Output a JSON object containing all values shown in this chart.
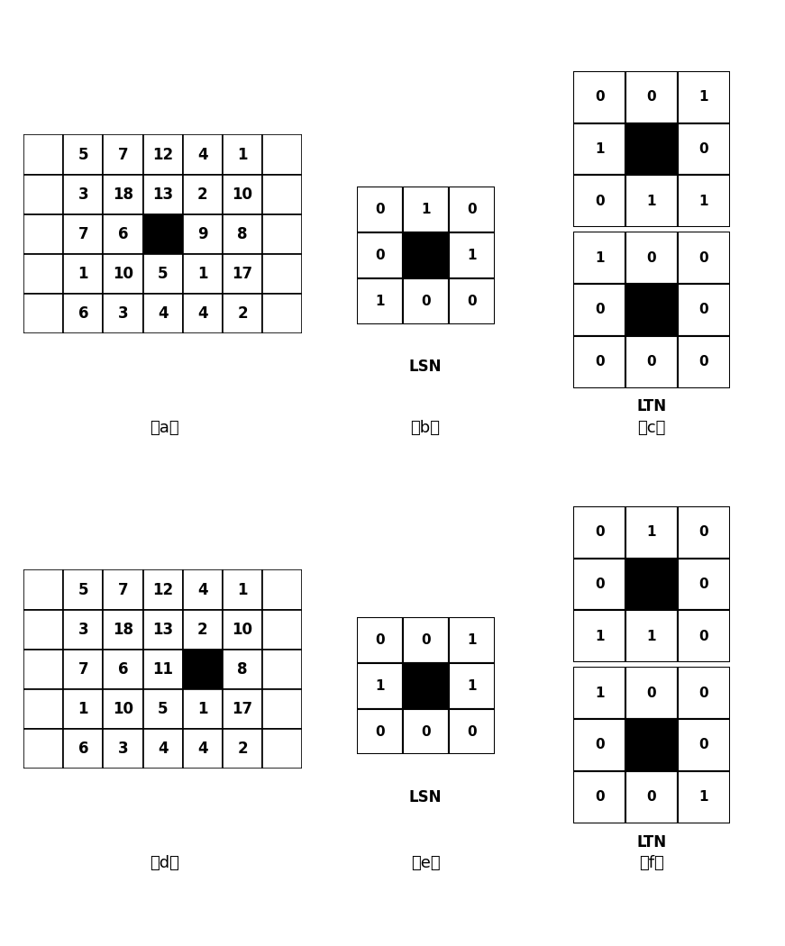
{
  "fig_width": 8.71,
  "fig_height": 10.5,
  "background": "#ffffff",
  "panel_a": {
    "grid": [
      [
        null,
        5,
        7,
        12,
        4,
        1,
        null
      ],
      [
        null,
        3,
        18,
        13,
        2,
        10,
        null
      ],
      [
        null,
        7,
        6,
        "X",
        9,
        8,
        null
      ],
      [
        null,
        1,
        10,
        5,
        1,
        17,
        null
      ],
      [
        null,
        6,
        3,
        4,
        4,
        2,
        null
      ]
    ],
    "black_cell": [
      2,
      3
    ],
    "label": "（a）"
  },
  "panel_b": {
    "grid": [
      [
        0,
        1,
        0
      ],
      [
        0,
        "X",
        1
      ],
      [
        1,
        0,
        0
      ]
    ],
    "black_cell": [
      1,
      1
    ],
    "label": "（b）",
    "sublabel": "LSN"
  },
  "panel_c_top": {
    "grid": [
      [
        0,
        0,
        1
      ],
      [
        1,
        "X",
        0
      ],
      [
        0,
        1,
        1
      ]
    ],
    "black_cell": [
      1,
      1
    ]
  },
  "panel_c_bot": {
    "grid": [
      [
        1,
        0,
        0
      ],
      [
        0,
        "X",
        0
      ],
      [
        0,
        0,
        0
      ]
    ],
    "black_cell": [
      1,
      1
    ],
    "label": "（c）",
    "sublabel": "LTN"
  },
  "panel_d": {
    "grid": [
      [
        null,
        5,
        7,
        12,
        4,
        1,
        null
      ],
      [
        null,
        3,
        18,
        13,
        2,
        10,
        null
      ],
      [
        null,
        7,
        6,
        11,
        "X",
        8,
        null
      ],
      [
        null,
        1,
        10,
        5,
        1,
        17,
        null
      ],
      [
        null,
        6,
        3,
        4,
        4,
        2,
        null
      ]
    ],
    "black_cell": [
      2,
      4
    ],
    "label": "（d）"
  },
  "panel_e": {
    "grid": [
      [
        0,
        0,
        1
      ],
      [
        1,
        "X",
        1
      ],
      [
        0,
        0,
        0
      ]
    ],
    "black_cell": [
      1,
      1
    ],
    "label": "（e）",
    "sublabel": "LSN"
  },
  "panel_f_top": {
    "grid": [
      [
        0,
        1,
        0
      ],
      [
        0,
        "X",
        0
      ],
      [
        1,
        1,
        0
      ]
    ],
    "black_cell": [
      1,
      1
    ]
  },
  "panel_f_bot": {
    "grid": [
      [
        1,
        0,
        0
      ],
      [
        0,
        "X",
        0
      ],
      [
        0,
        0,
        1
      ]
    ],
    "black_cell": [
      1,
      1
    ],
    "label": "（f）",
    "sublabel": "LTN"
  }
}
